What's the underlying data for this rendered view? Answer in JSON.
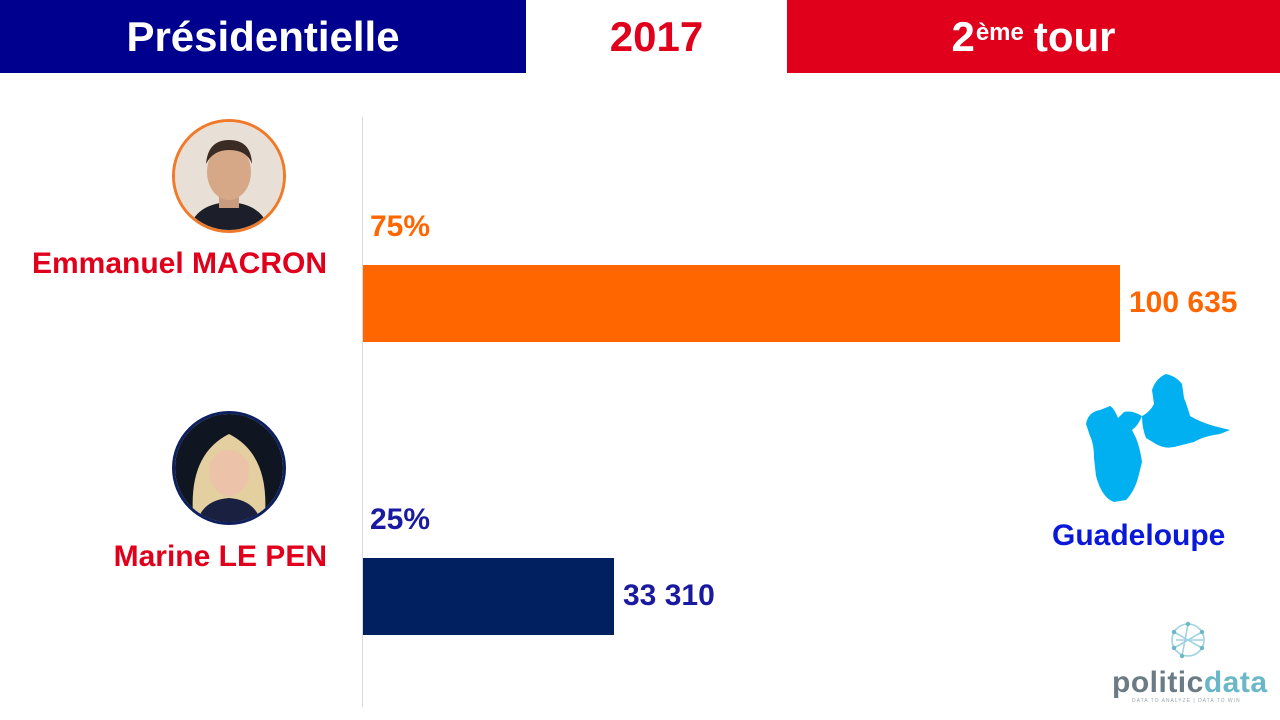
{
  "header": {
    "left": "Présidentielle",
    "year": "2017",
    "round_num": "2",
    "round_sup": "ème",
    "round_word": "tour"
  },
  "colors": {
    "blue_banner": "#00008f",
    "red": "#e0001b",
    "macron": "#ff6600",
    "lepen": "#002060",
    "lepen_text": "#1a1aa0",
    "region": "#00b0f0"
  },
  "chart_data": {
    "type": "bar",
    "orientation": "horizontal",
    "categories": [
      "Emmanuel MACRON",
      "Marine LE PEN"
    ],
    "values": [
      100635,
      33310
    ],
    "value_labels": [
      "100 635",
      "33 310"
    ],
    "percent_labels": [
      "75%",
      "25%"
    ],
    "xlim": [
      0,
      100635
    ],
    "grid": false
  },
  "region": {
    "name": "Guadeloupe",
    "icon": "guadeloupe-map-icon"
  },
  "logo": {
    "part1": "politic",
    "part2": "data",
    "tagline": "DATA TO ANALYZE | DATA TO WIN"
  }
}
